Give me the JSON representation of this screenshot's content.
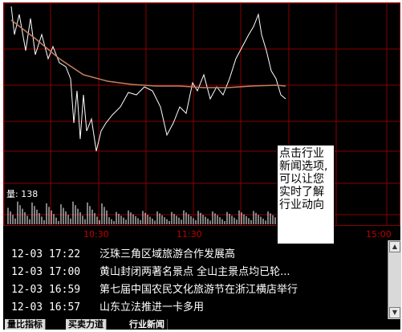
{
  "chart": {
    "volume_label": "量: 138",
    "time_labels": [
      "10:30",
      "11:30",
      "15:00"
    ],
    "colors": {
      "grid": "#8a0000",
      "price_line": "#ffffff",
      "avg_line": "#c08060",
      "volume": "#ffffff"
    }
  },
  "tooltip": {
    "text": "点击行业新闻选项,可以让您实时了解行业动向"
  },
  "news": [
    {
      "datetime": "12-03 17:22",
      "title": "泛珠三角区域旅游合作发展高"
    },
    {
      "datetime": "12-03 17:00",
      "title": "黄山封闭两著名景点 全山主景点均已轮..."
    },
    {
      "datetime": "12-03 16:59",
      "title": "第七届中国农民文化旅游节在浙江横店举行"
    },
    {
      "datetime": "12-03 16:57",
      "title": "山东立法推进一卡多用"
    }
  ],
  "scrollbar": {
    "up_icon": "triangle-up",
    "down_icon": "triangle-down"
  },
  "tabs": [
    {
      "label": "量比指标"
    },
    {
      "label": "买卖力道"
    },
    {
      "label": "行业新闻"
    }
  ]
}
